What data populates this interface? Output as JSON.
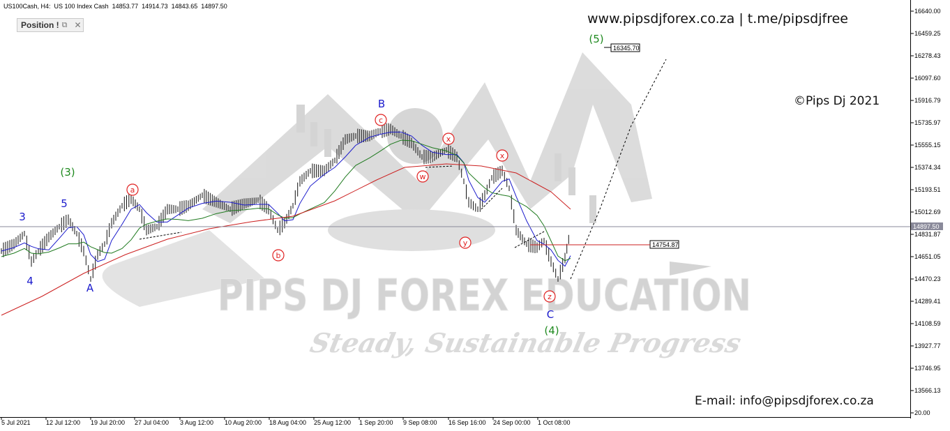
{
  "window": {
    "symbol_info": "US100Cash, H4:  US 100 Index Cash  14853.77  14914.73  14843.65  14897.50",
    "position_panel": {
      "label": "Position !",
      "restore_icon": "restore-icon",
      "close_icon": "close-icon"
    }
  },
  "branding": {
    "website_line": "www.pipsdjforex.co.za  |  t.me/pipsdjfree",
    "copyright": "©Pips Dj 2021",
    "email": "E-mail: info@pipsdjforex.co.za",
    "watermark_title": "PIPS DJ FOREX EDUCATION",
    "watermark_slogan": "Steady, Sustainable Progress"
  },
  "chart_data": {
    "type": "candlestick",
    "symbol": "US100Cash",
    "timeframe": "H4",
    "current_price": "14897.50",
    "price_axis_ticks": [
      "16640.00",
      "16459.25",
      "16278.43",
      "16097.60",
      "15916.79",
      "15735.97",
      "15555.15",
      "15374.34",
      "15193.51",
      "15012.69",
      "14831.87",
      "14651.05",
      "14470.23",
      "14289.41",
      "14108.59",
      "13927.77",
      "13746.95",
      "13566.13",
      "20.00"
    ],
    "time_axis_ticks": [
      "5 Jul 2021",
      "12 Jul 12:00",
      "19 Jul 20:00",
      "27 Jul 04:00",
      "3 Aug 12:00",
      "10 Aug 20:00",
      "18 Aug 04:00",
      "25 Aug 12:00",
      "1 Sep 20:00",
      "9 Sep 08:00",
      "16 Sep 16:00",
      "24 Sep 00:00",
      "1 Oct 08:00"
    ],
    "price_boxes": [
      {
        "label": "16345.70",
        "value": 16345.7
      },
      {
        "label": "14754.87",
        "value": 14754.87
      }
    ],
    "wave_labels_blue": [
      "3",
      "5",
      "4",
      "A",
      "B",
      "C"
    ],
    "wave_labels_green": [
      "(3)",
      "(4)",
      "(5)"
    ],
    "wave_labels_red_circled": [
      "a",
      "b",
      "c",
      "w",
      "x",
      "y",
      "x",
      "z"
    ],
    "moving_averages": [
      {
        "name": "fast",
        "color": "#1a1acc"
      },
      {
        "name": "medium",
        "color": "#1f7a1f"
      },
      {
        "name": "slow",
        "color": "#cc1f1f"
      }
    ]
  }
}
